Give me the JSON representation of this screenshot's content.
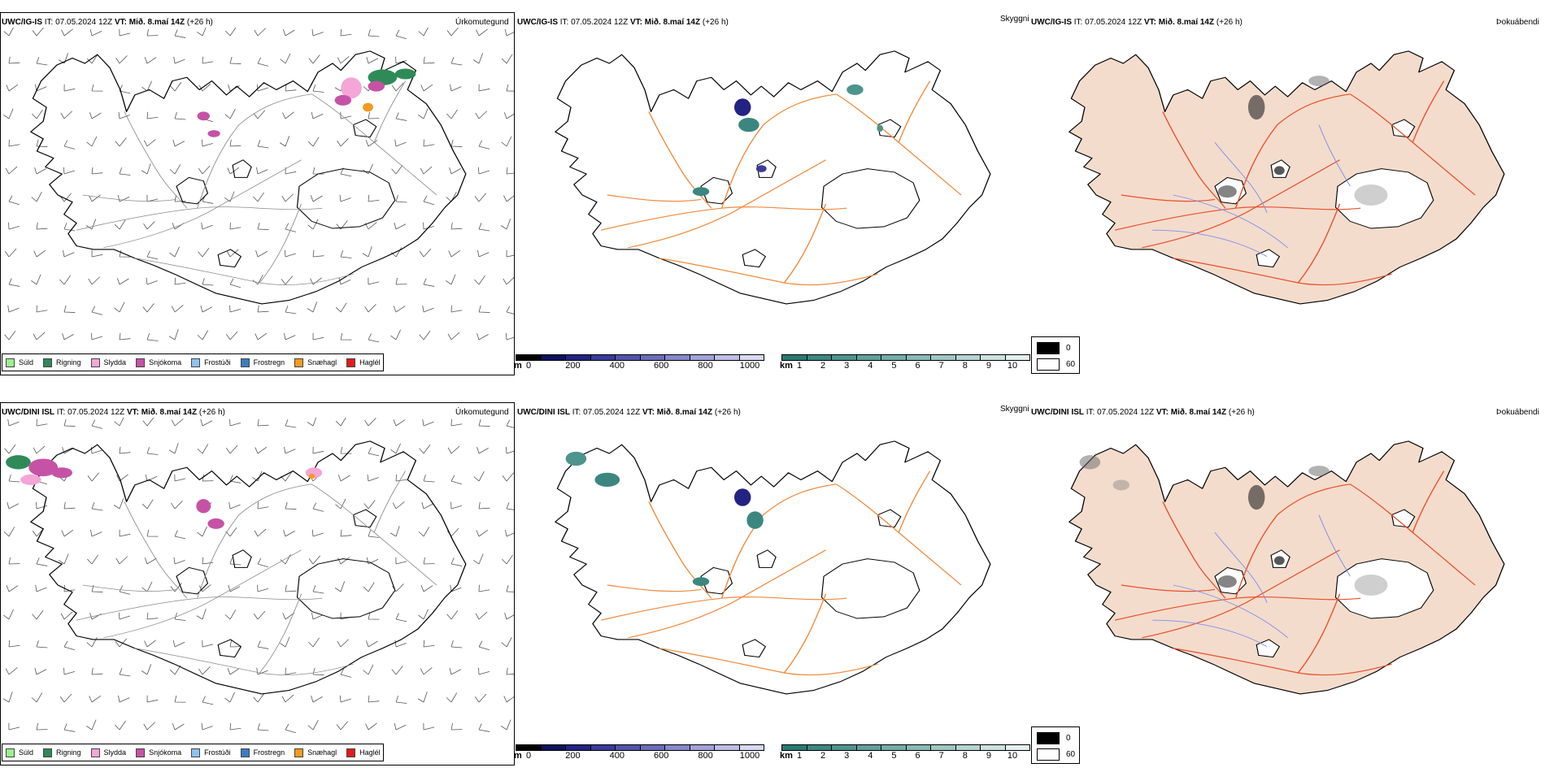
{
  "rows": [
    {
      "model": "UWC/IG-IS",
      "it_label": "IT:",
      "it_value": "07.05.2024 12Z",
      "vt_label": "VT:",
      "vt_value": "Mið. 8.maí 14Z",
      "lead": "(+26 h)"
    },
    {
      "model": "UWC/DINI ISL",
      "it_label": "IT:",
      "it_value": "07.05.2024 12Z",
      "vt_label": "VT:",
      "vt_value": "Mið. 8.maí 14Z",
      "lead": "(+26 h)"
    }
  ],
  "panel_titles": {
    "precip": "Úrkomutegund",
    "visibility": "Skyggni",
    "fog": "Þokuábendi"
  },
  "precip_legend": [
    {
      "label": "Súld",
      "color": "#9cf08f"
    },
    {
      "label": "Rigning",
      "color": "#2e8b57"
    },
    {
      "label": "Slydda",
      "color": "#f4a6d7"
    },
    {
      "label": "Snjókoma",
      "color": "#c652a5"
    },
    {
      "label": "Frostúði",
      "color": "#8ec3f0"
    },
    {
      "label": "Frostregn",
      "color": "#3a7cc4"
    },
    {
      "label": "Snæhagl",
      "color": "#f39b1e"
    },
    {
      "label": "Haglél",
      "color": "#e31a1c"
    }
  ],
  "elevation_bar": {
    "unit": "m",
    "ticks": [
      "0",
      "200",
      "400",
      "600",
      "800",
      "1000"
    ],
    "colors": [
      "#000000",
      "#101060",
      "#232383",
      "#3a3a9a",
      "#5353aa",
      "#6c6cba",
      "#8787c9",
      "#a2a2d8",
      "#bdbde5",
      "#d8d8f1"
    ]
  },
  "visibility_bar": {
    "unit": "km",
    "ticks": [
      "1",
      "2",
      "3",
      "4",
      "5",
      "6",
      "7",
      "8",
      "9",
      "10"
    ],
    "colors": [
      "#2a7a72",
      "#3b877f",
      "#4d948c",
      "#60a199",
      "#73ada7",
      "#88bab5",
      "#9dc7c2",
      "#b3d4d0",
      "#cae1de",
      "#e2efed"
    ]
  },
  "fog_legend": [
    {
      "label": "0",
      "color": "#000000"
    },
    {
      "label": "60",
      "color": "#ffffff"
    }
  ],
  "map_style": {
    "coast": "#000000",
    "precip_roads": "#8a8a8a",
    "vis_roads": "#f08a3c",
    "fog_land": "#f3dccc",
    "fog_roads": "#e8502a",
    "fog_rivers": "#7f8ff0",
    "glacier": "#ffffff",
    "wind_barbs": "#555555"
  }
}
